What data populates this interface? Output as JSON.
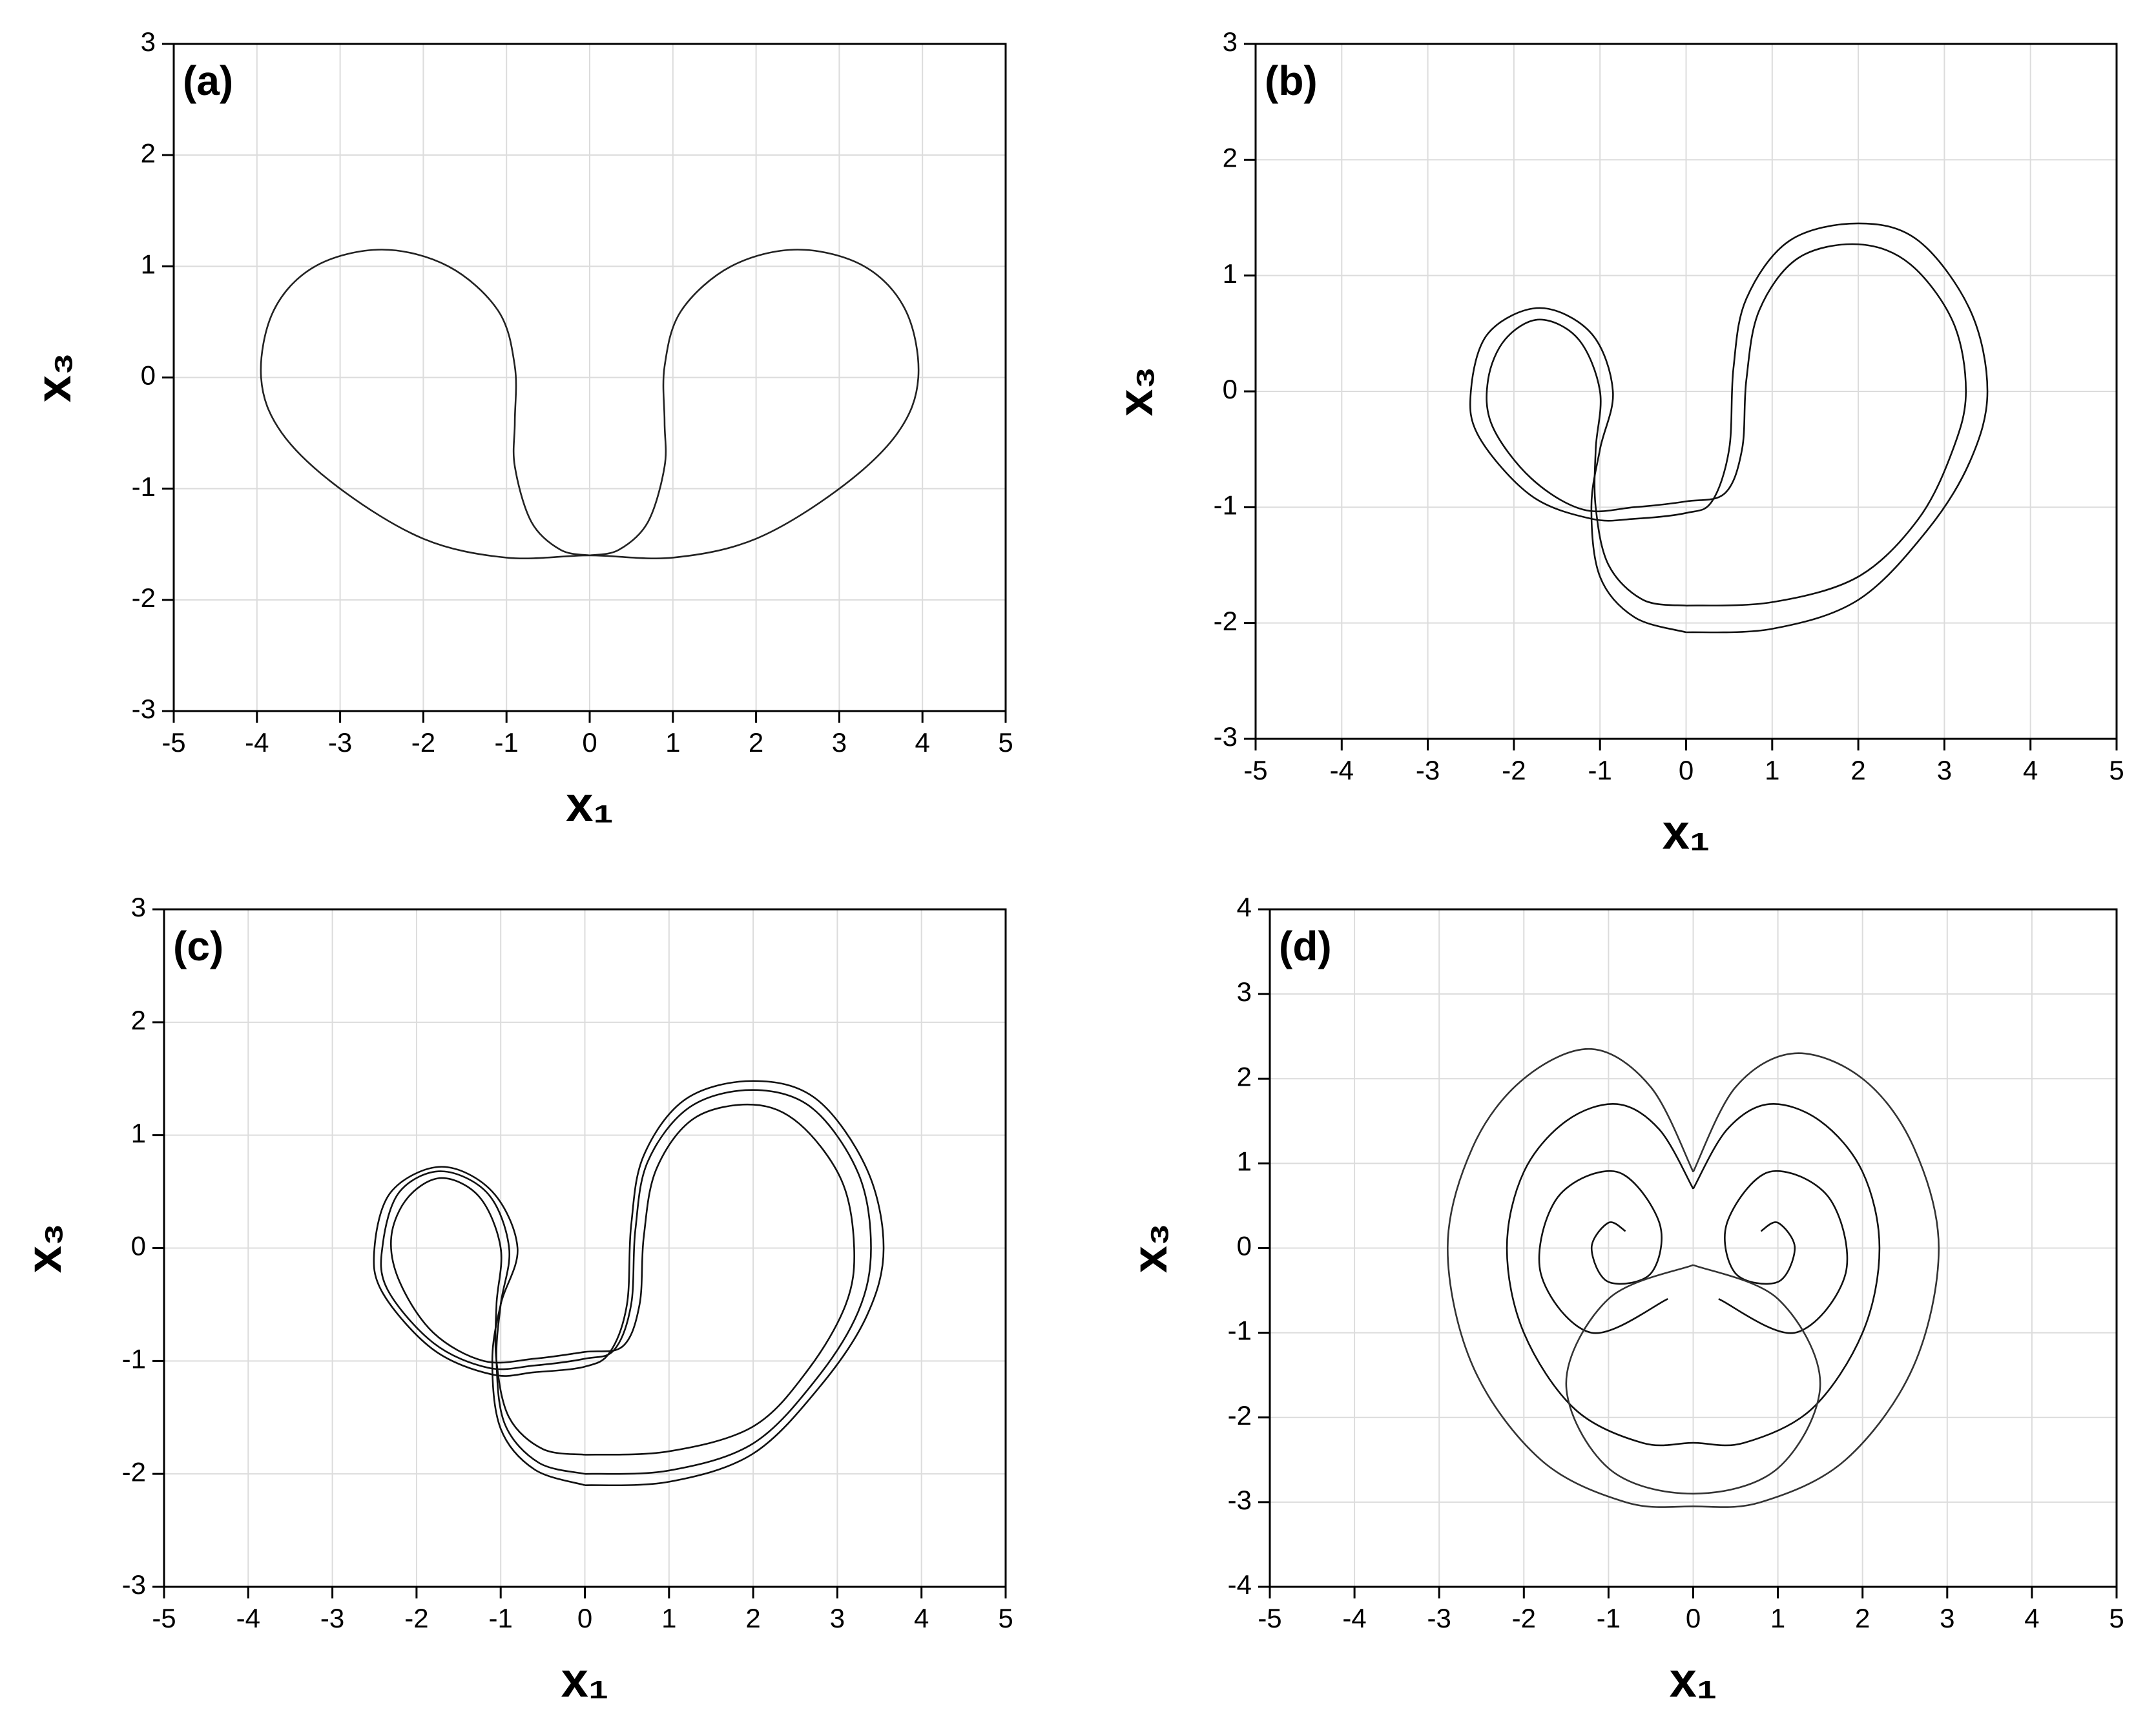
{
  "chart_data": [
    {
      "type": "line",
      "label": "(a)",
      "xlabel": "x₁",
      "ylabel": "x₃",
      "grid": true,
      "xlim": [
        -5,
        5
      ],
      "xticks": [
        -5,
        -4,
        -3,
        -2,
        -1,
        0,
        1,
        2,
        3,
        4,
        5
      ],
      "ylim": [
        -3,
        3
      ],
      "yticks": [
        -3,
        -2,
        -1,
        0,
        1,
        2,
        3
      ],
      "series": [
        {
          "color": "#222222",
          "x": [
            0,
            0.35,
            0.7,
            0.9,
            0.9,
            0.9,
            1.1,
            1.7,
            2.5,
            3.3,
            3.8,
            3.95,
            3.7,
            3,
            2,
            1,
            0,
            -1,
            -2,
            -3,
            -3.7,
            -3.95,
            -3.8,
            -3.3,
            -2.5,
            -1.7,
            -1.1,
            -0.9,
            -0.9,
            -0.9,
            -0.7,
            -0.35,
            0
          ],
          "values": [
            -1.6,
            -1.55,
            -1.3,
            -0.8,
            -0.4,
            0.1,
            0.6,
            1.0,
            1.15,
            1.0,
            0.6,
            0,
            -0.5,
            -1.0,
            -1.45,
            -1.62,
            -1.6,
            -1.62,
            -1.45,
            -1.0,
            -0.5,
            0,
            0.6,
            1.0,
            1.15,
            1.0,
            0.6,
            0.1,
            -0.4,
            -0.8,
            -1.3,
            -1.55,
            -1.6
          ]
        }
      ]
    },
    {
      "type": "line",
      "label": "(b)",
      "xlabel": "x₁",
      "ylabel": "x₃",
      "grid": true,
      "xlim": [
        -5,
        5
      ],
      "xticks": [
        -5,
        -4,
        -3,
        -2,
        -1,
        0,
        1,
        2,
        3,
        4,
        5
      ],
      "ylim": [
        -3,
        3
      ],
      "yticks": [
        -3,
        -2,
        -1,
        0,
        1,
        2,
        3
      ],
      "series": [
        {
          "color": "#111111",
          "x": [
            0,
            1,
            2,
            2.8,
            3.3,
            3.5,
            3.3,
            2.7,
            2,
            1.2,
            0.7,
            0.55,
            0.5,
            0.3,
            0,
            -0.6,
            -1.1,
            -1.8,
            -2.4,
            -2.5,
            -2.3,
            -1.7,
            -1.1,
            -0.85,
            -1.0,
            -1.1,
            -1.0,
            -0.6,
            0
          ],
          "values": [
            -2.08,
            -2.05,
            -1.8,
            -1.2,
            -0.6,
            0,
            0.7,
            1.3,
            1.45,
            1.3,
            0.8,
            0.2,
            -0.5,
            -0.95,
            -1.05,
            -1.1,
            -1.1,
            -0.9,
            -0.4,
            0,
            0.5,
            0.72,
            0.5,
            0,
            -0.5,
            -1.0,
            -1.6,
            -1.95,
            -2.08
          ]
        },
        {
          "color": "#111111",
          "x": [
            0,
            1,
            2,
            2.7,
            3.1,
            3.25,
            3.1,
            2.6,
            2,
            1.3,
            0.85,
            0.7,
            0.65,
            0.45,
            0,
            -0.6,
            -1.2,
            -1.8,
            -2.25,
            -2.3,
            -2.1,
            -1.7,
            -1.25,
            -1.0,
            -1.05,
            -1.05,
            -0.9,
            -0.5,
            0
          ],
          "values": [
            -1.85,
            -1.82,
            -1.6,
            -1.1,
            -0.5,
            0,
            0.6,
            1.1,
            1.27,
            1.15,
            0.7,
            0.1,
            -0.5,
            -0.88,
            -0.95,
            -1.0,
            -1.02,
            -0.75,
            -0.3,
            0.1,
            0.45,
            0.62,
            0.45,
            0,
            -0.5,
            -1.0,
            -1.5,
            -1.8,
            -1.85
          ]
        }
      ]
    },
    {
      "type": "line",
      "label": "(c)",
      "xlabel": "x₁",
      "ylabel": "x₃",
      "grid": true,
      "xlim": [
        -5,
        5
      ],
      "xticks": [
        -5,
        -4,
        -3,
        -2,
        -1,
        0,
        1,
        2,
        3,
        4,
        5
      ],
      "ylim": [
        -3,
        3
      ],
      "yticks": [
        -3,
        -2,
        -1,
        0,
        1,
        2,
        3
      ],
      "series": [
        {
          "color": "#111111",
          "x": [
            0,
            1,
            2,
            2.8,
            3.35,
            3.55,
            3.35,
            2.75,
            2,
            1.2,
            0.7,
            0.55,
            0.5,
            0.3,
            0,
            -0.6,
            -1.1,
            -1.8,
            -2.4,
            -2.5,
            -2.3,
            -1.7,
            -1.1,
            -0.8,
            -1.0,
            -1.1,
            -1.0,
            -0.6,
            0
          ],
          "values": [
            -2.1,
            -2.07,
            -1.82,
            -1.22,
            -0.6,
            0,
            0.7,
            1.32,
            1.48,
            1.32,
            0.82,
            0.2,
            -0.5,
            -0.92,
            -1.05,
            -1.1,
            -1.12,
            -0.9,
            -0.4,
            0,
            0.5,
            0.72,
            0.5,
            0,
            -0.5,
            -1.0,
            -1.6,
            -1.96,
            -2.1
          ]
        },
        {
          "color": "#111111",
          "x": [
            0,
            1,
            2,
            2.75,
            3.25,
            3.4,
            3.25,
            2.7,
            2,
            1.25,
            0.75,
            0.6,
            0.55,
            0.35,
            0,
            -0.6,
            -1.15,
            -1.8,
            -2.35,
            -2.4,
            -2.2,
            -1.7,
            -1.15,
            -0.9,
            -1.0,
            -1.05,
            -0.95,
            -0.55,
            0
          ],
          "values": [
            -2.0,
            -1.97,
            -1.73,
            -1.16,
            -0.56,
            0,
            0.66,
            1.24,
            1.4,
            1.25,
            0.77,
            0.16,
            -0.5,
            -0.9,
            -0.98,
            -1.04,
            -1.06,
            -0.84,
            -0.36,
            0.04,
            0.5,
            0.68,
            0.48,
            0,
            -0.5,
            -1.0,
            -1.56,
            -1.9,
            -2.0
          ]
        },
        {
          "color": "#111111",
          "x": [
            0,
            1,
            2,
            2.65,
            3.1,
            3.2,
            3.05,
            2.55,
            2,
            1.3,
            0.85,
            0.7,
            0.65,
            0.45,
            0,
            -0.6,
            -1.2,
            -1.8,
            -2.2,
            -2.3,
            -2.1,
            -1.7,
            -1.25,
            -1.0,
            -1.05,
            -1.05,
            -0.9,
            -0.5,
            0
          ],
          "values": [
            -1.83,
            -1.8,
            -1.58,
            -1.08,
            -0.5,
            0,
            0.6,
            1.1,
            1.27,
            1.15,
            0.7,
            0.1,
            -0.5,
            -0.87,
            -0.92,
            -0.98,
            -1.0,
            -0.75,
            -0.3,
            0.1,
            0.45,
            0.62,
            0.45,
            0,
            -0.5,
            -1.0,
            -1.5,
            -1.78,
            -1.83
          ]
        }
      ]
    },
    {
      "type": "line",
      "label": "(d)",
      "xlabel": "x₁",
      "ylabel": "x₃",
      "grid": true,
      "xlim": [
        -5,
        5
      ],
      "xticks": [
        -5,
        -4,
        -3,
        -2,
        -1,
        0,
        1,
        2,
        3,
        4,
        5
      ],
      "ylim": [
        -4,
        4
      ],
      "yticks": [
        -4,
        -3,
        -2,
        -1,
        0,
        1,
        2,
        3,
        4
      ],
      "series": [
        {
          "color": "#333333",
          "x": [
            0,
            0.5,
            1.2,
            2,
            2.6,
            2.9,
            2.6,
            1.8,
            0.8,
            0,
            -0.8,
            -1.8,
            -2.6,
            -2.9,
            -2.6,
            -2,
            -1.2,
            -0.5,
            0
          ],
          "values": [
            0.9,
            1.9,
            2.3,
            2.0,
            1.2,
            0,
            -1.4,
            -2.5,
            -3.0,
            -3.05,
            -3.0,
            -2.5,
            -1.4,
            0,
            1.2,
            2.0,
            2.35,
            1.9,
            0.9
          ]
        },
        {
          "color": "#111111",
          "x": [
            0,
            0.4,
            0.9,
            1.5,
            2.0,
            2.2,
            2.0,
            1.4,
            0.6,
            0,
            -0.6,
            -1.4,
            -2.0,
            -2.2,
            -2.0,
            -1.5,
            -0.9,
            -0.4,
            0
          ],
          "values": [
            0.7,
            1.4,
            1.7,
            1.5,
            0.9,
            0,
            -1.0,
            -1.9,
            -2.3,
            -2.3,
            -2.3,
            -1.9,
            -1.0,
            0,
            0.9,
            1.5,
            1.7,
            1.4,
            0.7
          ]
        },
        {
          "color": "#111111",
          "x": [
            -0.8,
            -1.0,
            -1.2,
            -1.0,
            -0.5,
            -0.4,
            -0.9,
            -1.6,
            -1.8,
            -1.2,
            -0.3
          ],
          "values": [
            0.2,
            0.3,
            0,
            -0.4,
            -0.3,
            0.3,
            0.9,
            0.6,
            -0.3,
            -1.0,
            -0.6
          ]
        },
        {
          "color": "#111111",
          "x": [
            0.8,
            1.0,
            1.2,
            1.0,
            0.5,
            0.4,
            0.9,
            1.6,
            1.8,
            1.2,
            0.3
          ],
          "values": [
            0.2,
            0.3,
            0,
            -0.4,
            -0.3,
            0.3,
            0.9,
            0.6,
            -0.3,
            -1.0,
            -0.6
          ]
        },
        {
          "color": "#333333",
          "x": [
            0,
            1.0,
            1.5,
            1.0,
            0,
            -1.0,
            -1.5,
            -1.0,
            0
          ],
          "values": [
            -0.2,
            -0.6,
            -1.6,
            -2.6,
            -2.9,
            -2.6,
            -1.6,
            -0.6,
            -0.2
          ]
        }
      ]
    }
  ]
}
